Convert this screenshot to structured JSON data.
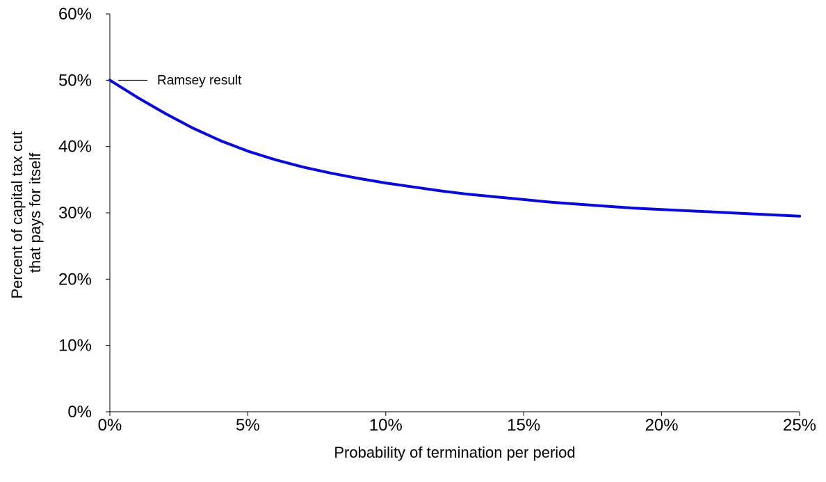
{
  "chart_data": {
    "type": "line",
    "title": "",
    "xlabel": "Probability of termination per period",
    "ylabel_lines": [
      "Percent of capital tax cut",
      "that pays for itself"
    ],
    "xlim": [
      0,
      25
    ],
    "ylim": [
      0,
      60
    ],
    "x_ticks": [
      0,
      5,
      10,
      15,
      20,
      25
    ],
    "x_tick_labels": [
      "0%",
      "5%",
      "10%",
      "15%",
      "20%",
      "25%"
    ],
    "y_ticks": [
      0,
      10,
      20,
      30,
      40,
      50,
      60
    ],
    "y_tick_labels": [
      "0%",
      "10%",
      "20%",
      "30%",
      "40%",
      "50%",
      "60%"
    ],
    "grid": false,
    "legend": "none",
    "annotations": [
      {
        "text": "Ramsey result",
        "x": 0,
        "y": 50
      }
    ],
    "series": [
      {
        "color": "#0a0ad8",
        "x": [
          0,
          1,
          2,
          3,
          4,
          5,
          6,
          7,
          8,
          9,
          10,
          11,
          12,
          13,
          14,
          15,
          16,
          17,
          18,
          19,
          20,
          21,
          22,
          23,
          24,
          25
        ],
        "y": [
          50.0,
          47.4,
          45.0,
          42.8,
          40.9,
          39.3,
          38.0,
          36.9,
          36.0,
          35.2,
          34.5,
          33.9,
          33.3,
          32.8,
          32.4,
          32.0,
          31.6,
          31.3,
          31.0,
          30.7,
          30.5,
          30.3,
          30.1,
          29.9,
          29.7,
          29.5
        ]
      }
    ]
  }
}
